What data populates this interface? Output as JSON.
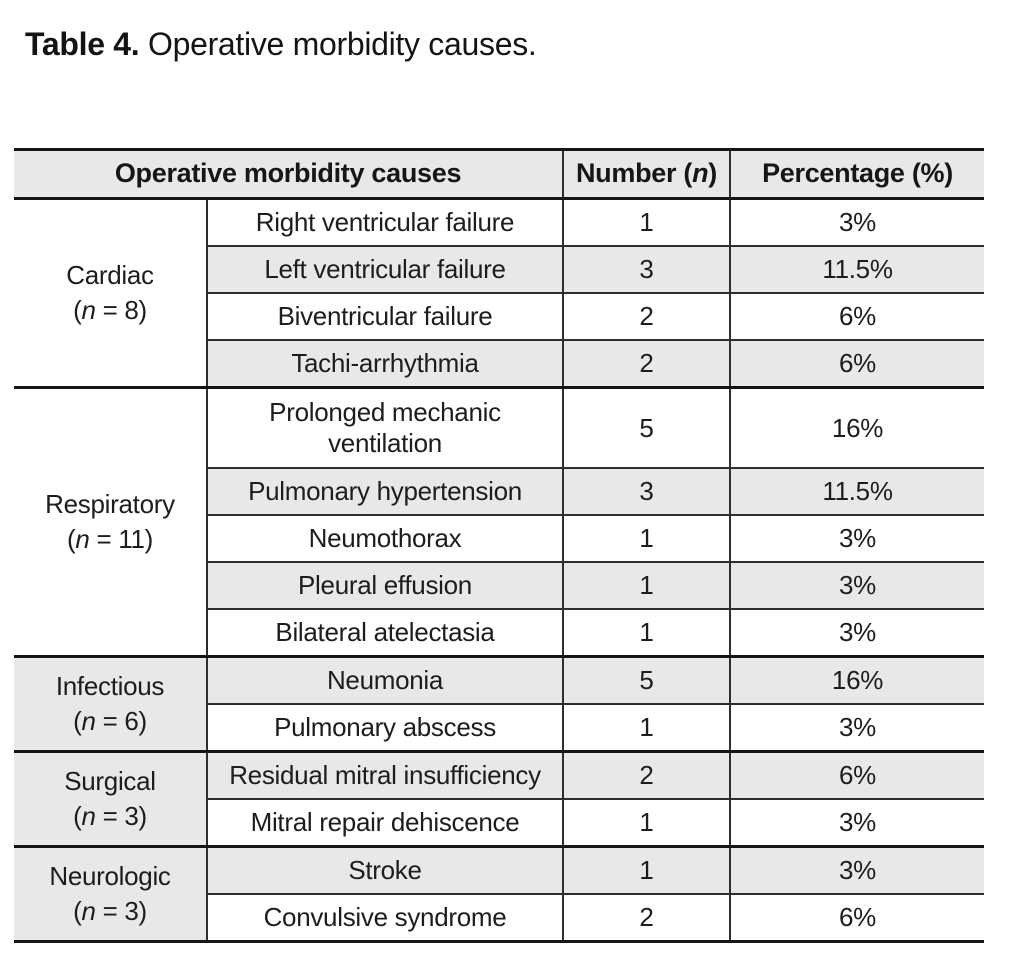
{
  "title": {
    "prefix": "Table 4.",
    "rest": " Operative morbidity causes."
  },
  "colors": {
    "row_alt_bg": "#e8e8e8",
    "header_bg": "#e8e8e8",
    "thick_border": "#161616",
    "thin_border": "#2e2e2e",
    "text": "#1d1d1d"
  },
  "table": {
    "headers": {
      "causes": "Operative morbidity causes",
      "number": "Number (n)",
      "percentage": "Percentage (%)"
    },
    "groups": [
      {
        "name": "Cardiac",
        "count": "(n = 8)",
        "rows": [
          {
            "cause": "Right ventricular failure",
            "number": "1",
            "percentage": "3%"
          },
          {
            "cause": "Left ventricular failure",
            "number": "3",
            "percentage": "11.5%"
          },
          {
            "cause": "Biventricular failure",
            "number": "2",
            "percentage": "6%"
          },
          {
            "cause": "Tachi-arrhythmia",
            "number": "2",
            "percentage": "6%"
          }
        ]
      },
      {
        "name": "Respiratory",
        "count": "(n = 11)",
        "rows": [
          {
            "cause": "Prolonged mechanic ventilation",
            "number": "5",
            "percentage": "16%"
          },
          {
            "cause": "Pulmonary hypertension",
            "number": "3",
            "percentage": "11.5%"
          },
          {
            "cause": "Neumothorax",
            "number": "1",
            "percentage": "3%"
          },
          {
            "cause": "Pleural effusion",
            "number": "1",
            "percentage": "3%"
          },
          {
            "cause": "Bilateral atelectasia",
            "number": "1",
            "percentage": "3%"
          }
        ]
      },
      {
        "name": "Infectious",
        "count": "(n = 6)",
        "rows": [
          {
            "cause": "Neumonia",
            "number": "5",
            "percentage": "16%"
          },
          {
            "cause": "Pulmonary abscess",
            "number": "1",
            "percentage": "3%"
          }
        ]
      },
      {
        "name": "Surgical",
        "count": "(n = 3)",
        "rows": [
          {
            "cause": "Residual mitral insufficiency",
            "number": "2",
            "percentage": "6%"
          },
          {
            "cause": "Mitral repair dehiscence",
            "number": "1",
            "percentage": "3%"
          }
        ]
      },
      {
        "name": "Neurologic",
        "count": "(n = 3)",
        "rows": [
          {
            "cause": "Stroke",
            "number": "1",
            "percentage": "3%"
          },
          {
            "cause": "Convulsive syndrome",
            "number": "2",
            "percentage": "6%"
          }
        ]
      }
    ]
  }
}
